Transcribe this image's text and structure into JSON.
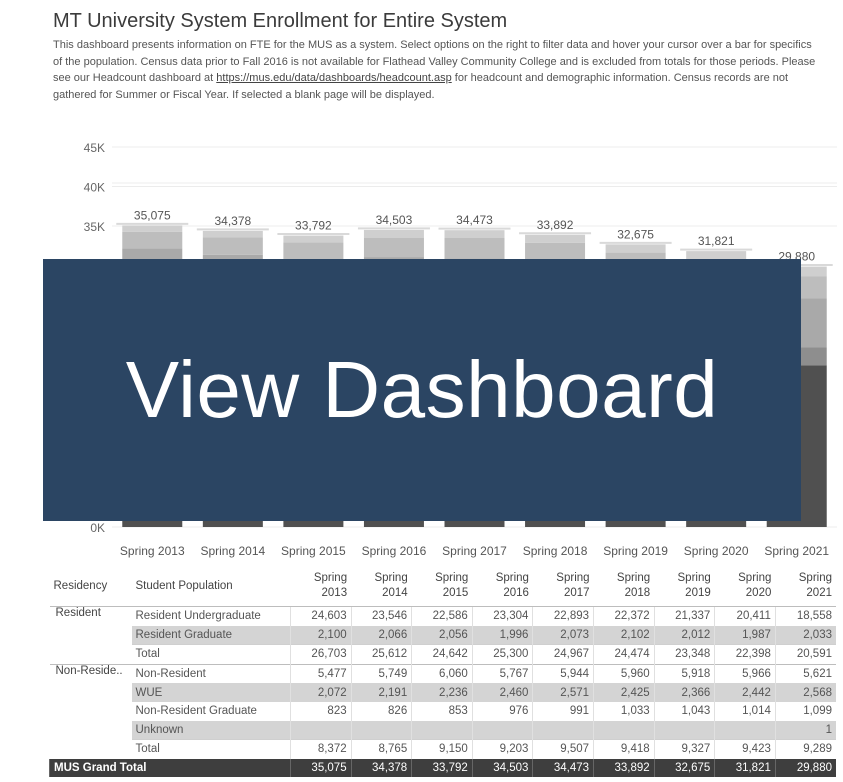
{
  "title": "MT University System Enrollment for Entire System",
  "description": {
    "text_before_link": "This dashboard presents information on FTE for the MUS as a system.  Select options on the right to filter data and hover your cursor over a bar for specifics of the population.  Census data prior to Fall 2016 is not available for Flathead Valley Community College and is excluded from totals for those periods.  Please see our Headcount dashboard at ",
    "link_text": "https://mus.edu/data/dashboards/headcount.asp",
    "text_after_link": " for headcount and demographic information.  Census records are not gathered for Summer or Fiscal Year.  If selected a blank page will be displayed."
  },
  "overlay_button": "View Dashboard",
  "colors": {
    "overlay_bg": "#2b4563",
    "grand_total_bg": "#3e3e3e",
    "bar_segments": [
      "#505050",
      "#8e8e8e",
      "#a9a9a9",
      "#bdbdbd",
      "#cfcfcf",
      "#e2e2e2"
    ]
  },
  "chart_data": {
    "type": "bar",
    "stacked": true,
    "categories": [
      "Spring 2013",
      "Spring 2014",
      "Spring 2015",
      "Spring 2016",
      "Spring 2017",
      "Spring 2018",
      "Spring 2019",
      "Spring 2020",
      "Spring 2021"
    ],
    "series": [
      {
        "values": [
          24603,
          23546,
          22586,
          23304,
          22893,
          22372,
          21337,
          20411,
          18558
        ]
      },
      {
        "values": [
          2100,
          2066,
          2056,
          1996,
          2073,
          2102,
          2012,
          1987,
          2033
        ]
      },
      {
        "values": [
          5477,
          5749,
          6060,
          5767,
          5944,
          5960,
          5918,
          5966,
          5621
        ]
      },
      {
        "values": [
          2072,
          2191,
          2236,
          2460,
          2571,
          2425,
          2366,
          2442,
          2568
        ]
      },
      {
        "values": [
          823,
          826,
          853,
          976,
          991,
          1033,
          1043,
          1014,
          1099
        ]
      },
      {
        "values": [
          0,
          0,
          0,
          0,
          0,
          0,
          0,
          0,
          1
        ]
      }
    ],
    "totals": [
      35075,
      34378,
      33792,
      34503,
      34473,
      33892,
      32675,
      31821,
      29880
    ],
    "total_labels": [
      "35,075",
      "34,378",
      "33,792",
      "34,503",
      "34,473",
      "33,892",
      "32,675",
      "31,821",
      "29,880"
    ],
    "y_ticks": [
      "0K",
      "35K",
      "40K",
      "45K"
    ],
    "y_tick_values": [
      0,
      35000,
      40000,
      45000
    ],
    "ylim": [
      0,
      45000
    ],
    "grid": true
  },
  "table": {
    "headers": {
      "residency": "Residency",
      "population": "Student Population",
      "terms": [
        [
          "Spring",
          "2013"
        ],
        [
          "Spring",
          "2014"
        ],
        [
          "Spring",
          "2015"
        ],
        [
          "Spring",
          "2016"
        ],
        [
          "Spring",
          "2017"
        ],
        [
          "Spring",
          "2018"
        ],
        [
          "Spring",
          "2019"
        ],
        [
          "Spring",
          "2020"
        ],
        [
          "Spring",
          "2021"
        ]
      ]
    },
    "groups": [
      {
        "residency": "Resident",
        "rows": [
          {
            "label": "Resident Undergraduate",
            "values": [
              "24,603",
              "23,546",
              "22,586",
              "23,304",
              "22,893",
              "22,372",
              "21,337",
              "20,411",
              "18,558"
            ]
          },
          {
            "label": "Resident Graduate",
            "values": [
              "2,100",
              "2,066",
              "2,056",
              "1,996",
              "2,073",
              "2,102",
              "2,012",
              "1,987",
              "2,033"
            ]
          },
          {
            "label": "Total",
            "values": [
              "26,703",
              "25,612",
              "24,642",
              "25,300",
              "24,967",
              "24,474",
              "23,348",
              "22,398",
              "20,591"
            ]
          }
        ]
      },
      {
        "residency": "Non-Reside..",
        "rows": [
          {
            "label": "Non-Resident",
            "values": [
              "5,477",
              "5,749",
              "6,060",
              "5,767",
              "5,944",
              "5,960",
              "5,918",
              "5,966",
              "5,621"
            ]
          },
          {
            "label": "WUE",
            "values": [
              "2,072",
              "2,191",
              "2,236",
              "2,460",
              "2,571",
              "2,425",
              "2,366",
              "2,442",
              "2,568"
            ]
          },
          {
            "label": "Non-Resident Graduate",
            "values": [
              "823",
              "826",
              "853",
              "976",
              "991",
              "1,033",
              "1,043",
              "1,014",
              "1,099"
            ]
          },
          {
            "label": "Unknown",
            "values": [
              "",
              "",
              "",
              "",
              "",
              "",
              "",
              "",
              "1"
            ]
          },
          {
            "label": "Total",
            "values": [
              "8,372",
              "8,765",
              "9,150",
              "9,203",
              "9,507",
              "9,418",
              "9,327",
              "9,423",
              "9,289"
            ]
          }
        ]
      }
    ],
    "grand_total": {
      "label": "MUS Grand Total",
      "values": [
        "35,075",
        "34,378",
        "33,792",
        "34,503",
        "34,473",
        "33,892",
        "32,675",
        "31,821",
        "29,880"
      ]
    }
  }
}
